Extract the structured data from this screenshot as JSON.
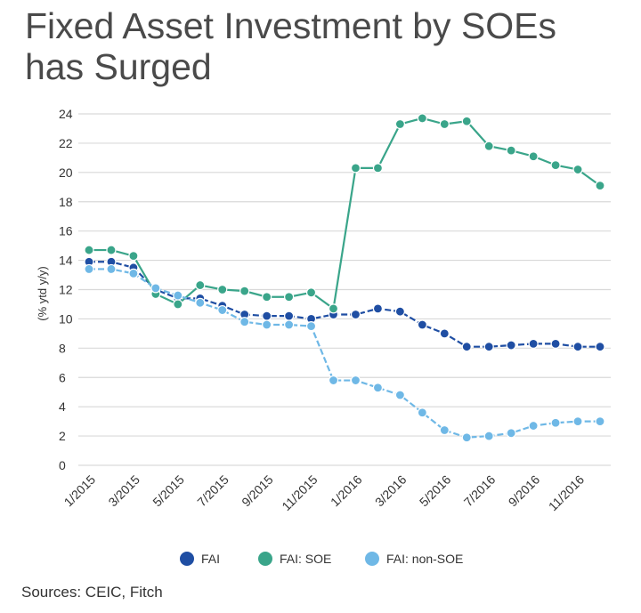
{
  "title_line1": "Fixed Asset Investment by SOEs",
  "title_line2": "has Surged",
  "source": "Sources: CEIC, Fitch",
  "chart_data": {
    "type": "line",
    "title": "Fixed Asset Investment by SOEs has Surged",
    "ylabel": "(% ytd y/y)",
    "xlabel": "",
    "ylim": [
      0,
      24
    ],
    "yticks": [
      0,
      2,
      4,
      6,
      8,
      10,
      12,
      14,
      16,
      18,
      20,
      22,
      24
    ],
    "grid": true,
    "legend_position": "bottom",
    "x": [
      "1/2015",
      "2/2015",
      "3/2015",
      "4/2015",
      "5/2015",
      "6/2015",
      "7/2015",
      "8/2015",
      "9/2015",
      "10/2015",
      "11/2015",
      "12/2015",
      "1/2016",
      "2/2016",
      "3/2016",
      "4/2016",
      "5/2016",
      "6/2016",
      "7/2016",
      "8/2016",
      "9/2016",
      "10/2016",
      "11/2016",
      "12/2016"
    ],
    "xtick_labels": [
      "1/2015",
      "3/2015",
      "5/2015",
      "7/2015",
      "9/2015",
      "11/2015",
      "1/2016",
      "3/2016",
      "5/2016",
      "7/2016",
      "9/2016",
      "11/2016"
    ],
    "xtick_indices": [
      0,
      2,
      4,
      6,
      8,
      10,
      12,
      14,
      16,
      18,
      20,
      22
    ],
    "series": [
      {
        "name": "FAI",
        "color": "#1f4ea3",
        "values": [
          13.9,
          13.9,
          13.5,
          12.0,
          11.4,
          11.4,
          10.9,
          10.3,
          10.2,
          10.2,
          10.0,
          10.3,
          10.3,
          10.7,
          10.5,
          9.6,
          9.0,
          8.1,
          8.1,
          8.2,
          8.3,
          8.3,
          8.1,
          8.1
        ]
      },
      {
        "name": "FAI: SOE",
        "color": "#3aa58a",
        "values": [
          14.7,
          14.7,
          14.3,
          11.7,
          11.0,
          12.3,
          12.0,
          11.9,
          11.5,
          11.5,
          11.8,
          10.7,
          20.3,
          20.3,
          23.3,
          23.7,
          23.3,
          23.5,
          21.8,
          21.5,
          21.1,
          20.5,
          20.2,
          19.1
        ]
      },
      {
        "name": "FAI: non-SOE",
        "color": "#6fb8e6",
        "values": [
          13.4,
          13.4,
          13.1,
          12.1,
          11.6,
          11.1,
          10.6,
          9.8,
          9.6,
          9.6,
          9.5,
          5.8,
          5.8,
          5.3,
          4.8,
          3.6,
          2.4,
          1.9,
          2.0,
          2.2,
          2.7,
          2.9,
          3.0,
          3.0
        ]
      }
    ]
  }
}
